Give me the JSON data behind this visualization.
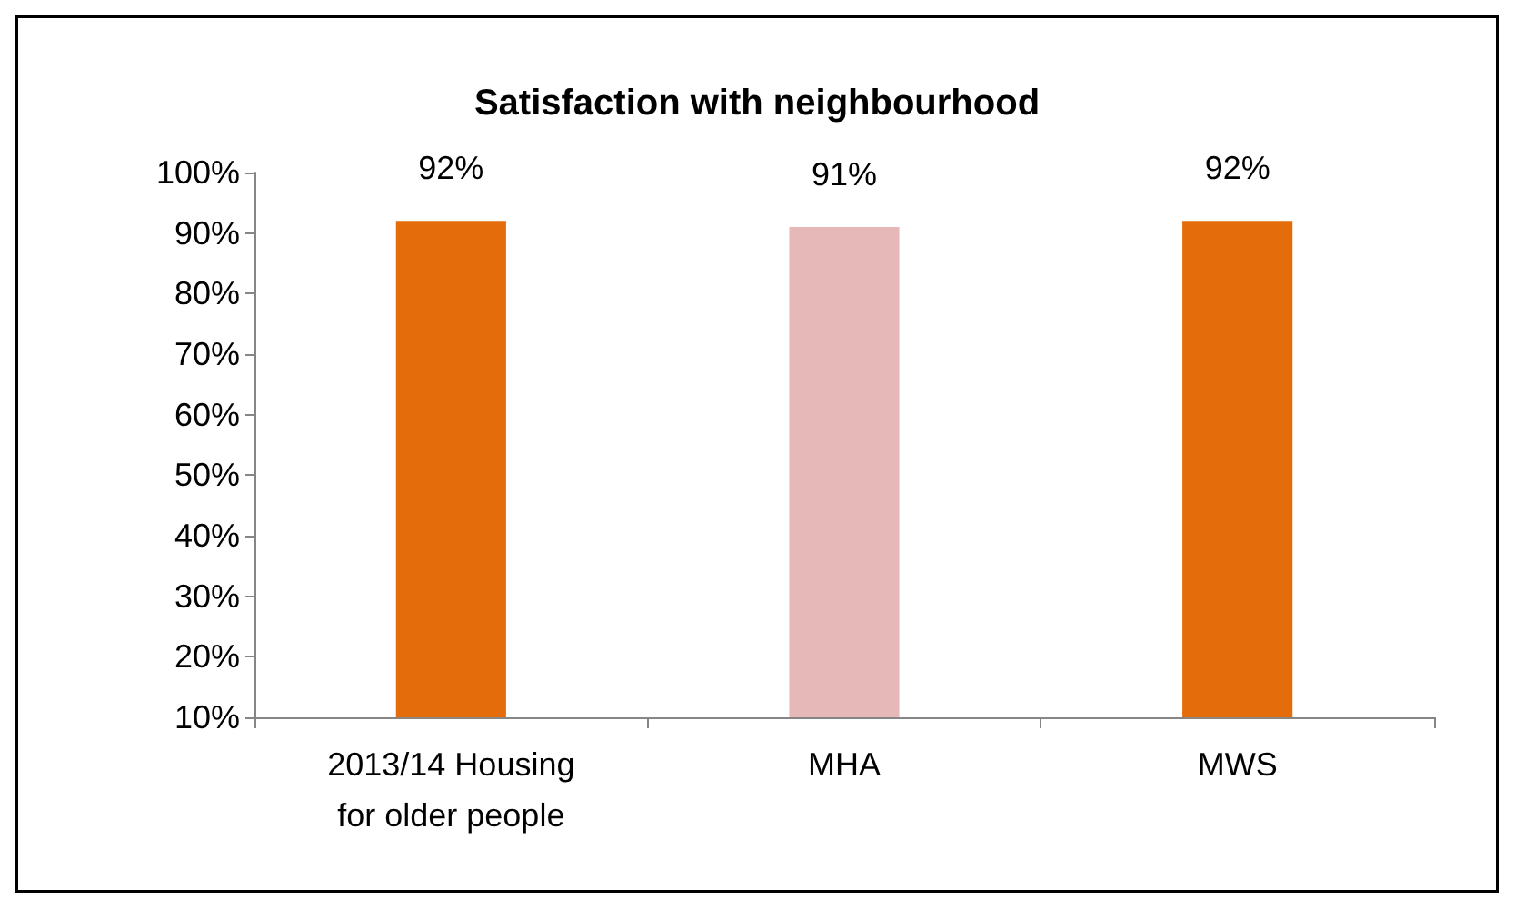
{
  "chart_data": {
    "type": "bar",
    "title": "Satisfaction with neighbourhood",
    "categories": [
      "2013/14 Housing for older people",
      "MHA",
      "MWS"
    ],
    "values": [
      92,
      91,
      92
    ],
    "value_labels": [
      "92%",
      "91%",
      "92%"
    ],
    "colors": [
      "#e46c0a",
      "#e6b9b8",
      "#e46c0a"
    ],
    "ylim": [
      10,
      100
    ],
    "yticks": [
      {
        "value": 10,
        "label": "10%"
      },
      {
        "value": 20,
        "label": "20%"
      },
      {
        "value": 30,
        "label": "30%"
      },
      {
        "value": 40,
        "label": "40%"
      },
      {
        "value": 50,
        "label": "50%"
      },
      {
        "value": 60,
        "label": "60%"
      },
      {
        "value": 70,
        "label": "70%"
      },
      {
        "value": 80,
        "label": "80%"
      },
      {
        "value": 90,
        "label": "90%"
      },
      {
        "value": 100,
        "label": "100%"
      }
    ],
    "grid": false
  }
}
